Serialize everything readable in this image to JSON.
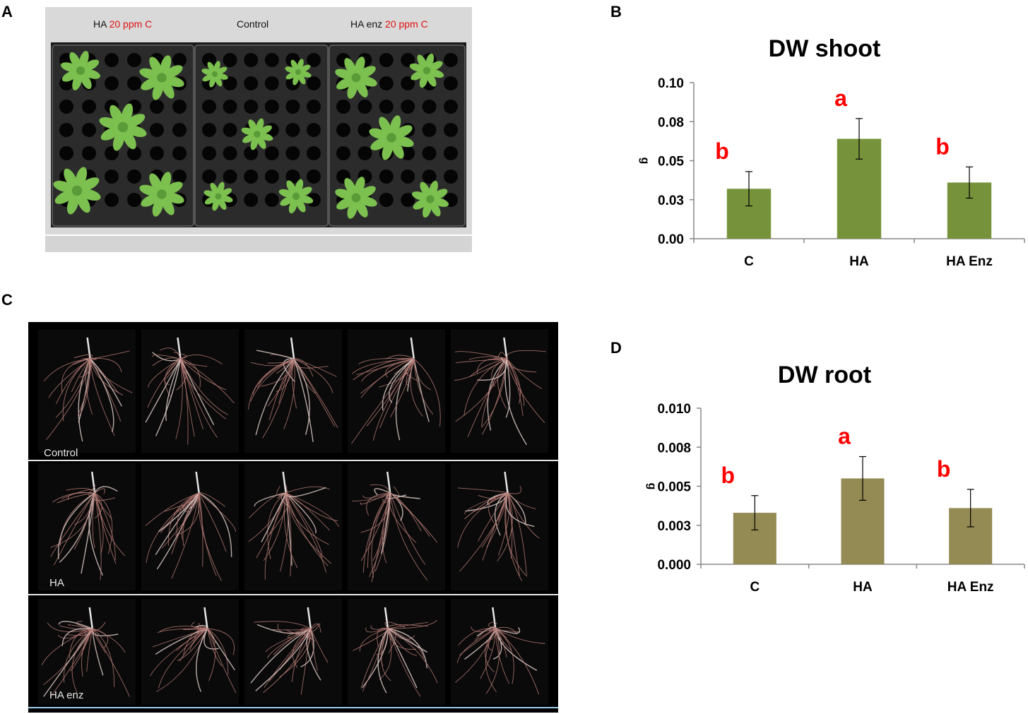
{
  "panels": {
    "a": "A",
    "b": "B",
    "c": "C",
    "d": "D"
  },
  "photo_a": {
    "labels": [
      {
        "text": "HA ",
        "red": "20 ppm C"
      },
      {
        "text": "Control",
        "red": ""
      },
      {
        "text": "HA enz ",
        "red": "20 ppm C"
      }
    ]
  },
  "photo_c": {
    "row_labels": [
      "Control",
      "HA",
      "HA enz"
    ]
  },
  "colors": {
    "shoot_bar": "#76933c",
    "root_bar": "#948a54",
    "letter_red": "#ff0000",
    "plant_green": "#7cc04f",
    "root_color": "#b57a74"
  },
  "chart_data": [
    {
      "type": "bar",
      "title": "DW shoot",
      "ylabel": "g",
      "xlabel": "",
      "categories": [
        "C",
        "HA",
        "HA Enz"
      ],
      "values": [
        0.032,
        0.064,
        0.036
      ],
      "errors": [
        0.011,
        0.013,
        0.01
      ],
      "significance": [
        "b",
        "a",
        "b"
      ],
      "ylim": [
        0,
        0.1
      ],
      "yticks": [
        0,
        0.025,
        0.05,
        0.075,
        0.1
      ],
      "ytick_labels": [
        "0.00",
        "0.03",
        "0.05",
        "0.08",
        "0.10"
      ],
      "grid": false,
      "legend": "none"
    },
    {
      "type": "bar",
      "title": "DW root",
      "ylabel": "g",
      "xlabel": "",
      "categories": [
        "C",
        "HA",
        "HA Enz"
      ],
      "values": [
        0.0033,
        0.0055,
        0.0036
      ],
      "errors": [
        0.0011,
        0.0014,
        0.0012
      ],
      "significance": [
        "b",
        "a",
        "b"
      ],
      "ylim": [
        0,
        0.01
      ],
      "yticks": [
        0,
        0.0025,
        0.005,
        0.0075,
        0.01
      ],
      "ytick_labels": [
        "0.000",
        "0.003",
        "0.005",
        "0.008",
        "0.010"
      ],
      "grid": false,
      "legend": "none"
    }
  ]
}
